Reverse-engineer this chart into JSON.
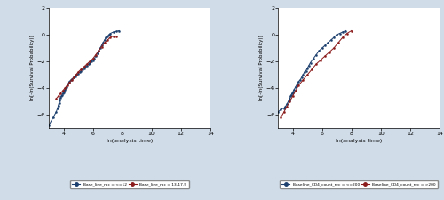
{
  "plot1": {
    "xlabel": "ln(analysis time)",
    "ylabel": "ln[-ln(Survival Probability)]",
    "xlim": [
      3,
      14
    ],
    "ylim": [
      -7,
      2
    ],
    "xticks": [
      4,
      6,
      8,
      10,
      12,
      14
    ],
    "yticks": [
      -6,
      -4,
      -2,
      0,
      2
    ],
    "series": [
      {
        "label": "Base_line_rec = <=12",
        "color": "#1c3f6e",
        "x": [
          3.0,
          3.3,
          3.5,
          3.6,
          3.65,
          3.7,
          3.75,
          3.8,
          3.85,
          3.9,
          3.95,
          4.0,
          4.05,
          4.1,
          4.15,
          4.2,
          4.3,
          4.4,
          4.5,
          4.6,
          4.7,
          4.8,
          4.9,
          5.0,
          5.1,
          5.2,
          5.3,
          5.4,
          5.5,
          5.6,
          5.7,
          5.8,
          5.9,
          6.0,
          6.1,
          6.2,
          6.3,
          6.4,
          6.5,
          6.6,
          6.7,
          6.8,
          6.9,
          7.0,
          7.1,
          7.2,
          7.4,
          7.6,
          7.8
        ],
        "y": [
          -6.8,
          -6.2,
          -5.8,
          -5.5,
          -5.3,
          -5.1,
          -4.9,
          -4.7,
          -4.6,
          -4.5,
          -4.4,
          -4.3,
          -4.2,
          -4.1,
          -4.0,
          -3.9,
          -3.7,
          -3.5,
          -3.4,
          -3.3,
          -3.2,
          -3.1,
          -3.0,
          -2.9,
          -2.8,
          -2.7,
          -2.6,
          -2.5,
          -2.4,
          -2.3,
          -2.2,
          -2.1,
          -2.0,
          -1.9,
          -1.8,
          -1.6,
          -1.4,
          -1.2,
          -1.0,
          -0.8,
          -0.6,
          -0.4,
          -0.2,
          -0.1,
          0.0,
          0.1,
          0.2,
          0.25,
          0.3
        ]
      },
      {
        "label": "Base_line_rec = 13-17.5",
        "color": "#8b1a1a",
        "x": [
          3.5,
          3.65,
          3.8,
          3.95,
          4.1,
          4.25,
          4.4,
          4.55,
          4.7,
          4.85,
          5.0,
          5.2,
          5.4,
          5.6,
          5.8,
          6.0,
          6.2,
          6.4,
          6.6,
          6.8,
          7.0,
          7.2,
          7.4,
          7.6
        ],
        "y": [
          -4.8,
          -4.6,
          -4.4,
          -4.2,
          -4.0,
          -3.8,
          -3.6,
          -3.4,
          -3.2,
          -3.0,
          -2.8,
          -2.6,
          -2.4,
          -2.2,
          -2.0,
          -1.8,
          -1.5,
          -1.2,
          -0.9,
          -0.6,
          -0.4,
          -0.2,
          -0.1,
          -0.1
        ]
      }
    ]
  },
  "plot2": {
    "xlabel": "ln(analysis time)",
    "ylabel": "ln[-ln(Survival Probability)]",
    "xlim": [
      3,
      14
    ],
    "ylim": [
      -7,
      2
    ],
    "xticks": [
      4,
      6,
      8,
      10,
      12,
      14
    ],
    "yticks": [
      -6,
      -4,
      -2,
      0,
      2
    ],
    "series": [
      {
        "label": "Baseline_CD4_count_rec = <=200",
        "color": "#1c3f6e",
        "x": [
          3.0,
          3.2,
          3.4,
          3.5,
          3.6,
          3.7,
          3.75,
          3.8,
          3.85,
          3.9,
          3.95,
          4.0,
          4.1,
          4.2,
          4.3,
          4.4,
          4.5,
          4.6,
          4.7,
          4.8,
          4.9,
          5.0,
          5.1,
          5.2,
          5.4,
          5.6,
          5.8,
          6.0,
          6.2,
          6.4,
          6.6,
          6.8,
          7.0,
          7.2,
          7.4,
          7.6
        ],
        "y": [
          -5.8,
          -5.6,
          -5.5,
          -5.4,
          -5.2,
          -5.0,
          -4.9,
          -4.8,
          -4.6,
          -4.5,
          -4.4,
          -4.3,
          -4.1,
          -3.9,
          -3.7,
          -3.5,
          -3.4,
          -3.2,
          -3.0,
          -2.8,
          -2.7,
          -2.5,
          -2.3,
          -2.1,
          -1.8,
          -1.5,
          -1.2,
          -1.0,
          -0.8,
          -0.6,
          -0.4,
          -0.2,
          0.0,
          0.1,
          0.2,
          0.3
        ]
      },
      {
        "label": "Baseline_CD4_count_rec = >200",
        "color": "#8b1a1a",
        "x": [
          3.2,
          3.4,
          3.6,
          3.8,
          4.0,
          4.2,
          4.4,
          4.7,
          5.0,
          5.3,
          5.6,
          5.9,
          6.2,
          6.5,
          6.8,
          7.1,
          7.4,
          7.7,
          8.0
        ],
        "y": [
          -6.2,
          -5.8,
          -5.4,
          -5.0,
          -4.6,
          -4.2,
          -3.8,
          -3.4,
          -3.0,
          -2.6,
          -2.2,
          -1.9,
          -1.6,
          -1.3,
          -1.0,
          -0.6,
          -0.2,
          0.1,
          0.3
        ]
      }
    ]
  },
  "outer_bg_color": "#d0dce8",
  "plot_bg_color": "#ffffff",
  "legend_frame_color": "#ffffff"
}
